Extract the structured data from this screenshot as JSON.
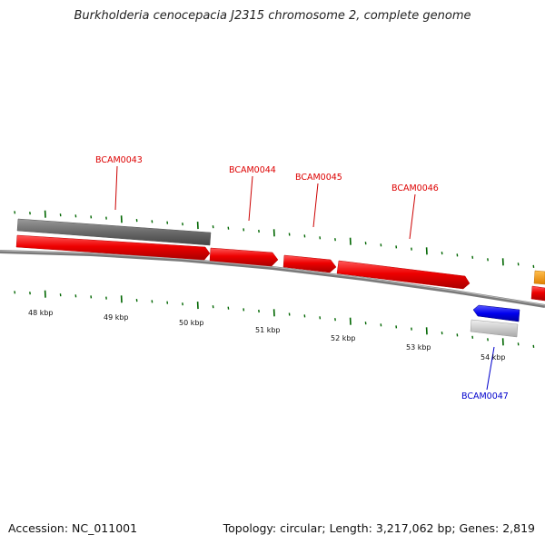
{
  "title": "Burkholderia cenocepacia J2315 chromosome 2, complete genome",
  "footer": {
    "accession": "Accession: NC_011001",
    "summary": "Topology: circular; Length: 3,217,062 bp; Genes: 2,819"
  },
  "colors": {
    "forward_gene": "#ff0000",
    "reverse_gene": "#0000ff",
    "forward_feature": "#666666",
    "reverse_feature": "#c8c8c8",
    "partial_feature": "#ff9900",
    "backbone": "#808080",
    "ticks": "#006600"
  },
  "scale_labels": [
    "48 kbp",
    "49 kbp",
    "50 kbp",
    "51 kbp",
    "52 kbp",
    "53 kbp",
    "54 kbp"
  ],
  "gene_labels": [
    {
      "name": "BCAM0043",
      "strand": "forward"
    },
    {
      "name": "BCAM0044",
      "strand": "forward"
    },
    {
      "name": "BCAM0045",
      "strand": "forward"
    },
    {
      "name": "BCAM0046",
      "strand": "forward"
    },
    {
      "name": "BCAM0047",
      "strand": "reverse"
    }
  ]
}
